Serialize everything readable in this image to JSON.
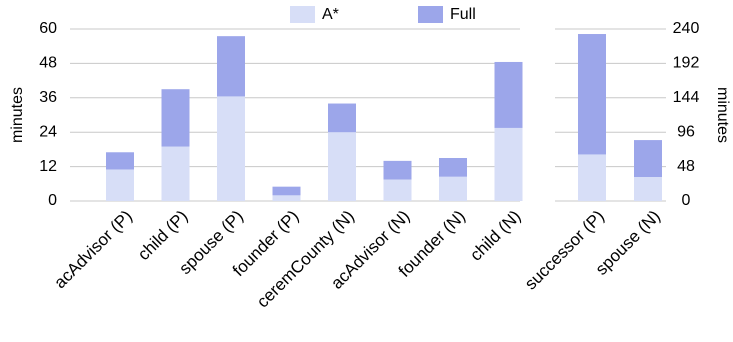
{
  "chart_data": [
    {
      "type": "bar",
      "ylabel": "minutes",
      "categories": [
        "acAdvisor (P)",
        "child (P)",
        "spouse (P)",
        "founder (P)",
        "ceremCounty (N)",
        "acAdvisor (N)",
        "founder (N)",
        "child (N)"
      ],
      "series": [
        {
          "name": "Full",
          "color": "#9ca6ea",
          "values": [
            17,
            39,
            57.5,
            5,
            34,
            14,
            15,
            48.5
          ]
        },
        {
          "name": "A*",
          "color": "#d7def7",
          "values": [
            11,
            19,
            36.5,
            2,
            24,
            7.5,
            8.5,
            25.5
          ]
        }
      ],
      "ylim": [
        0,
        60
      ],
      "yticks": [
        0,
        12,
        24,
        36,
        48,
        60
      ],
      "grid": true,
      "legend": "top"
    },
    {
      "type": "bar",
      "ylabel": "minutes",
      "categories": [
        "successor (P)",
        "spouse (N)"
      ],
      "series": [
        {
          "name": "Full",
          "color": "#9ca6ea",
          "values": [
            233,
            85
          ]
        },
        {
          "name": "A*",
          "color": "#d7def7",
          "values": [
            65,
            33.5
          ]
        }
      ],
      "ylim": [
        0,
        240
      ],
      "yticks": [
        0,
        48,
        96,
        144,
        192,
        240
      ],
      "grid": true
    }
  ]
}
